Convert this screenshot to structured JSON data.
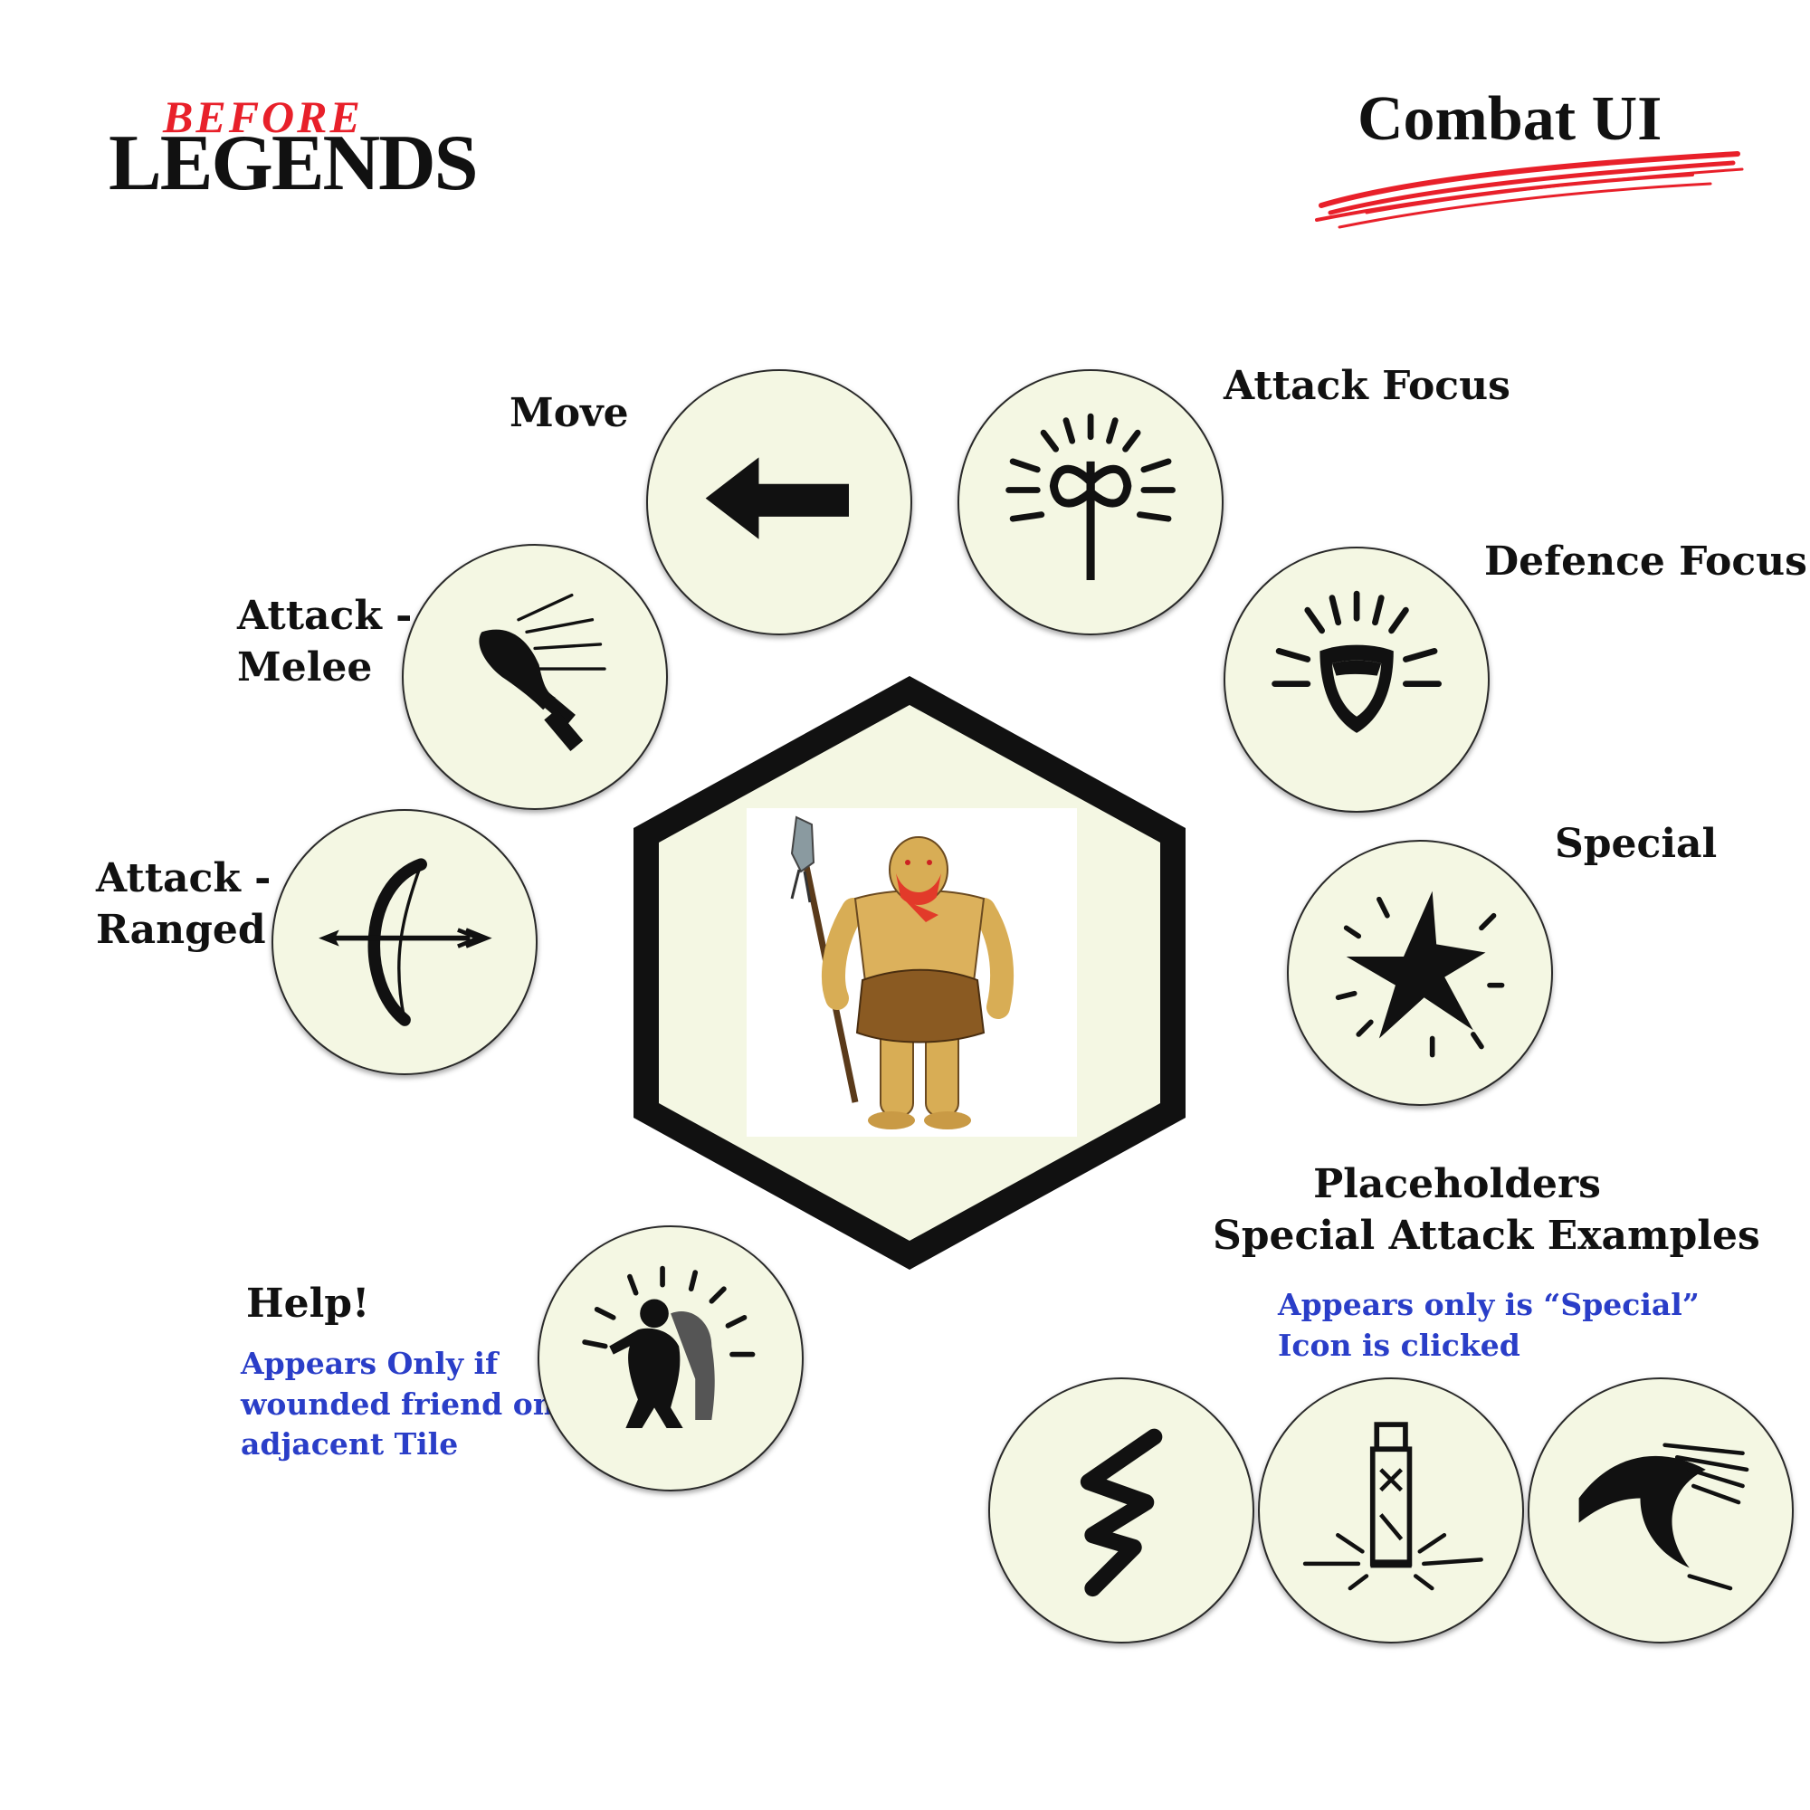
{
  "logo": {
    "line1": "BEFORE",
    "line2": "LEGENDS"
  },
  "page_title": "Combat UI",
  "colors": {
    "button_fill": "#f4f7e3",
    "accent_red": "#e8202a",
    "note_blue": "#2a3ec8",
    "ink": "#111111"
  },
  "actions": {
    "move": {
      "label": "Move",
      "icon": "arrow-left-icon"
    },
    "attack_focus": {
      "label": "Attack Focus",
      "icon": "axe-focus-icon"
    },
    "defence_focus": {
      "label": "Defence Focus",
      "icon": "shield-focus-icon"
    },
    "special": {
      "label": "Special",
      "icon": "burst-star-icon"
    },
    "attack_melee": {
      "label_line1": "Attack -",
      "label_line2": "Melee",
      "icon": "club-icon"
    },
    "attack_ranged": {
      "label_line1": "Attack -",
      "label_line2": "Ranged",
      "icon": "bow-arrow-icon"
    },
    "help": {
      "label": "Help!",
      "note_line1": "Appears Only if",
      "note_line2": "wounded friend on",
      "note_line3": "adjacent Tile",
      "icon": "carry-friend-icon"
    }
  },
  "placeholders": {
    "heading_line1": "Placeholders",
    "heading_line2": "Special Attack Examples",
    "note_line1": "Appears only is “Special”",
    "note_line2": "Icon is clicked",
    "icons": [
      "zigzag-strike-icon",
      "totem-pillar-icon",
      "sweep-wave-icon"
    ]
  },
  "center": {
    "character": "caveman-spear-icon"
  }
}
